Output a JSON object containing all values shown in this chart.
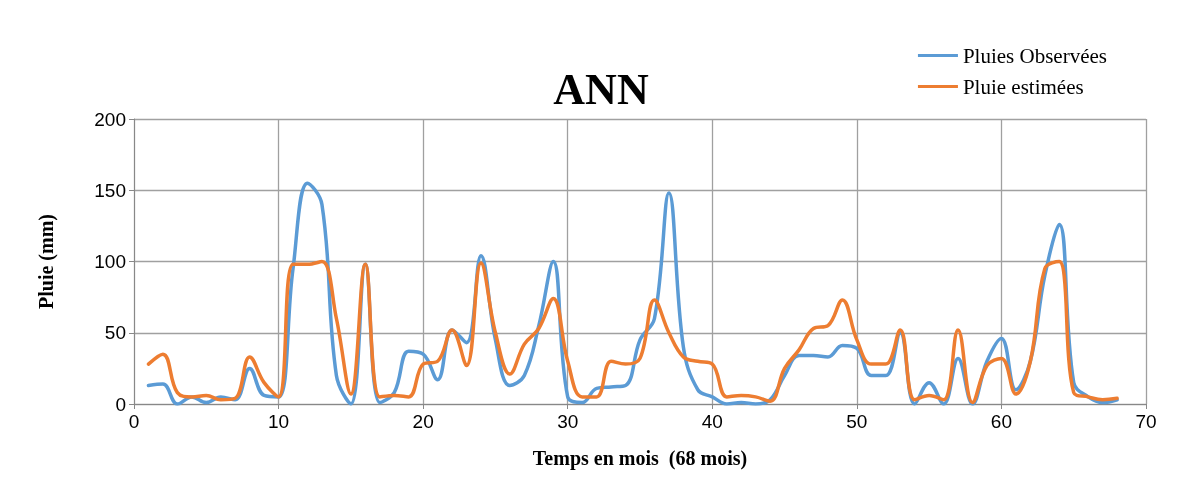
{
  "chart_data": {
    "type": "line",
    "title": "ANN",
    "xlabel": "Temps en mois  (68 mois)",
    "ylabel": "Pluie (mm)",
    "x": [
      1,
      2,
      3,
      4,
      5,
      6,
      7,
      8,
      9,
      10,
      11,
      12,
      13,
      14,
      15,
      16,
      17,
      18,
      19,
      20,
      21,
      22,
      23,
      24,
      25,
      26,
      27,
      28,
      29,
      30,
      31,
      32,
      33,
      34,
      35,
      36,
      37,
      38,
      39,
      40,
      41,
      42,
      43,
      44,
      45,
      46,
      47,
      48,
      49,
      50,
      51,
      52,
      53,
      54,
      55,
      56,
      57,
      58,
      59,
      60,
      61,
      62,
      63,
      64,
      65,
      66,
      67,
      68
    ],
    "series": [
      {
        "name": "Pluies Observées",
        "color": "#5b9bd5",
        "values": [
          13,
          14,
          0,
          5,
          1,
          5,
          3,
          25,
          6,
          5,
          95,
          155,
          140,
          20,
          0,
          98,
          1,
          8,
          37,
          35,
          17,
          52,
          43,
          104,
          45,
          13,
          20,
          55,
          100,
          5,
          1,
          11,
          12,
          13,
          45,
          60,
          148,
          40,
          10,
          5,
          0,
          1,
          0,
          3,
          20,
          34,
          34,
          33,
          41,
          39,
          20,
          20,
          50,
          0,
          15,
          0,
          32,
          0,
          30,
          46,
          10,
          30,
          90,
          126,
          15,
          5,
          1,
          3
        ]
      },
      {
        "name": "Pluie estimées",
        "color": "#ed7d31",
        "values": [
          28,
          35,
          8,
          5,
          6,
          3,
          4,
          33,
          15,
          5,
          98,
          98,
          100,
          60,
          7,
          98,
          5,
          6,
          5,
          28,
          30,
          52,
          27,
          99,
          50,
          21,
          42,
          53,
          74,
          30,
          5,
          5,
          30,
          28,
          32,
          73,
          50,
          33,
          30,
          28,
          5,
          6,
          5,
          2,
          25,
          38,
          53,
          55,
          73,
          45,
          28,
          28,
          52,
          3,
          6,
          3,
          52,
          1,
          27,
          32,
          7,
          30,
          95,
          100,
          8,
          5,
          3,
          4
        ]
      }
    ],
    "xlim": [
      0,
      70
    ],
    "xticks": [
      0,
      10,
      20,
      30,
      40,
      50,
      60,
      70
    ],
    "ylim": [
      0,
      200
    ],
    "yticks": [
      0,
      50,
      100,
      150,
      200
    ],
    "grid": true,
    "legend": "top right",
    "marker": "none",
    "line_style": "solid"
  }
}
